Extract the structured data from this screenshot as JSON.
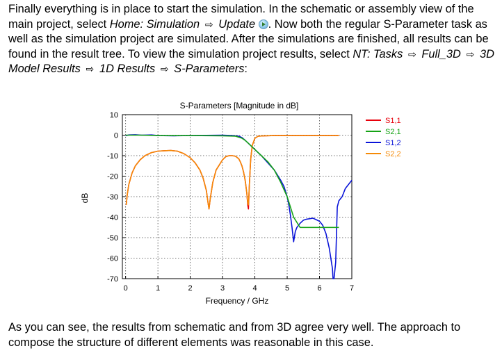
{
  "intro": {
    "t1": "Finally everything is in place to start the simulation. In the schematic or assembly view of the main project, select ",
    "menu1": "Home: Simulation",
    "menu2": "Update",
    "t2": ". Now both the regular S-Parameter task as well as the simulation project are simulated. After the simulations are finished, all results can be found in the result tree. To view the simulation project results, select ",
    "path1": "NT: Tasks",
    "path2": "Full_3D",
    "path3": "3D Model Results",
    "path4": "1D Results",
    "path5": "S-Parameters",
    "t3": ":",
    "arrow": "⇨",
    "update_icon": "play-circle-icon"
  },
  "conclusion": {
    "text": "As you can see, the results from schematic and from 3D agree very well. The approach to compose the structure of different elements was reasonable in this case."
  },
  "chart_data": {
    "type": "line",
    "title": "S-Parameters [Magnitude in dB]",
    "xlabel": "Frequency / GHz",
    "ylabel": "dB",
    "xlim": [
      -0.1,
      7
    ],
    "ylim": [
      -70,
      10
    ],
    "xticks": [
      "0",
      "1",
      "2",
      "3",
      "4",
      "5",
      "6",
      "7"
    ],
    "yticks": [
      "10",
      "0",
      "-10",
      "-20",
      "-30",
      "-40",
      "-50",
      "-60",
      "-70"
    ],
    "grid": "dotted",
    "legend_position": "right",
    "series": [
      {
        "name": "S1,1",
        "color": "#e8000b",
        "x": [
          0.02,
          0.05,
          0.1,
          0.2,
          0.3,
          0.45,
          0.6,
          0.8,
          1.0,
          1.2,
          1.4,
          1.6,
          1.8,
          2.0,
          2.15,
          2.3,
          2.4,
          2.5,
          2.55,
          2.58,
          2.62,
          2.7,
          2.8,
          3.0,
          3.1,
          3.2,
          3.3,
          3.4,
          3.5,
          3.55,
          3.6,
          3.65,
          3.7,
          3.75,
          3.78,
          3.8,
          3.83,
          3.87,
          3.92,
          4.0,
          4.1,
          4.3,
          4.6,
          5.0,
          5.5,
          6.0,
          6.4,
          6.6
        ],
        "y": [
          -34,
          -29,
          -24,
          -18.5,
          -15,
          -12,
          -10,
          -8.5,
          -7.8,
          -7.6,
          -7.5,
          -7.8,
          -9,
          -11,
          -13.5,
          -17,
          -21,
          -27,
          -33,
          -36,
          -31,
          -23,
          -17,
          -12,
          -10.5,
          -10,
          -10,
          -10.3,
          -11.5,
          -13,
          -15,
          -18,
          -22,
          -28,
          -34,
          -36,
          -24,
          -12,
          -5,
          -1.5,
          -0.5,
          -0.3,
          -0.2,
          -0.2,
          -0.2,
          -0.2,
          -0.2,
          -0.2
        ]
      },
      {
        "name": "S2,1",
        "color": "#16a316",
        "x": [
          0.0,
          0.5,
          1.0,
          2.0,
          3.0,
          3.4,
          3.6,
          3.7,
          3.8,
          3.9,
          4.0,
          4.2,
          4.4,
          4.6,
          4.8,
          5.0,
          5.2,
          5.4,
          5.6,
          5.8,
          6.0,
          6.2,
          6.4,
          6.6
        ],
        "y": [
          0,
          0,
          -0.2,
          -0.2,
          -0.3,
          -0.5,
          -1.5,
          -2.5,
          -4,
          -5.5,
          -7,
          -10,
          -13,
          -17,
          -23,
          -30,
          -40,
          -45,
          -45,
          -45,
          -45,
          -45,
          -45,
          -45
        ]
      },
      {
        "name": "S1,2",
        "color": "#0a14d8",
        "x": [
          0.0,
          0.1,
          0.3,
          0.5,
          0.8,
          1.0,
          1.5,
          2.0,
          2.5,
          3.0,
          3.3,
          3.5,
          3.6,
          3.7,
          3.8,
          3.9,
          4.0,
          4.2,
          4.4,
          4.6,
          4.8,
          4.9,
          5.0,
          5.05,
          5.1,
          5.15,
          5.2,
          5.25,
          5.3,
          5.4,
          5.5,
          5.6,
          5.8,
          6.0,
          6.1,
          6.2,
          6.3,
          6.4,
          6.42,
          6.45,
          6.5,
          6.55,
          6.6,
          6.7,
          6.8,
          6.9,
          7.0
        ],
        "y": [
          -0.3,
          0.1,
          0.2,
          0,
          0.1,
          -0.2,
          -0.3,
          -0.2,
          -0.1,
          0,
          -0.2,
          -0.5,
          -1.2,
          -2.5,
          -4,
          -5.5,
          -7,
          -10,
          -13.5,
          -17,
          -22,
          -25,
          -30,
          -34,
          -39,
          -45,
          -52,
          -47,
          -45,
          -43,
          -41.5,
          -41,
          -40.5,
          -42,
          -44,
          -48,
          -55,
          -65,
          -70,
          -72,
          -62,
          -35,
          -32,
          -30,
          -26,
          -24,
          -22
        ]
      },
      {
        "name": "S2,2",
        "color": "#f58a07",
        "x": [
          0.02,
          0.05,
          0.1,
          0.2,
          0.3,
          0.45,
          0.6,
          0.8,
          1.0,
          1.2,
          1.4,
          1.6,
          1.8,
          2.0,
          2.15,
          2.3,
          2.4,
          2.5,
          2.55,
          2.58,
          2.62,
          2.7,
          2.8,
          3.0,
          3.1,
          3.2,
          3.3,
          3.4,
          3.5,
          3.55,
          3.6,
          3.65,
          3.7,
          3.75,
          3.78,
          3.8,
          3.83,
          3.87,
          3.92,
          4.0,
          4.1,
          4.3,
          4.6,
          5.0,
          5.5,
          6.0,
          6.4,
          6.6
        ],
        "y": [
          -34,
          -29,
          -24,
          -18.5,
          -15,
          -12,
          -10,
          -8.5,
          -7.8,
          -7.6,
          -7.5,
          -7.8,
          -9,
          -11,
          -13.5,
          -17,
          -21,
          -27,
          -33,
          -36,
          -31,
          -23,
          -17,
          -12,
          -10.5,
          -10,
          -10,
          -10.3,
          -11.5,
          -13,
          -15,
          -18,
          -22,
          -28,
          -33,
          -34,
          -24,
          -12,
          -5,
          -1.5,
          -0.5,
          -0.3,
          -0.2,
          -0.2,
          -0.2,
          -0.2,
          -0.2,
          -0.2
        ]
      }
    ]
  }
}
